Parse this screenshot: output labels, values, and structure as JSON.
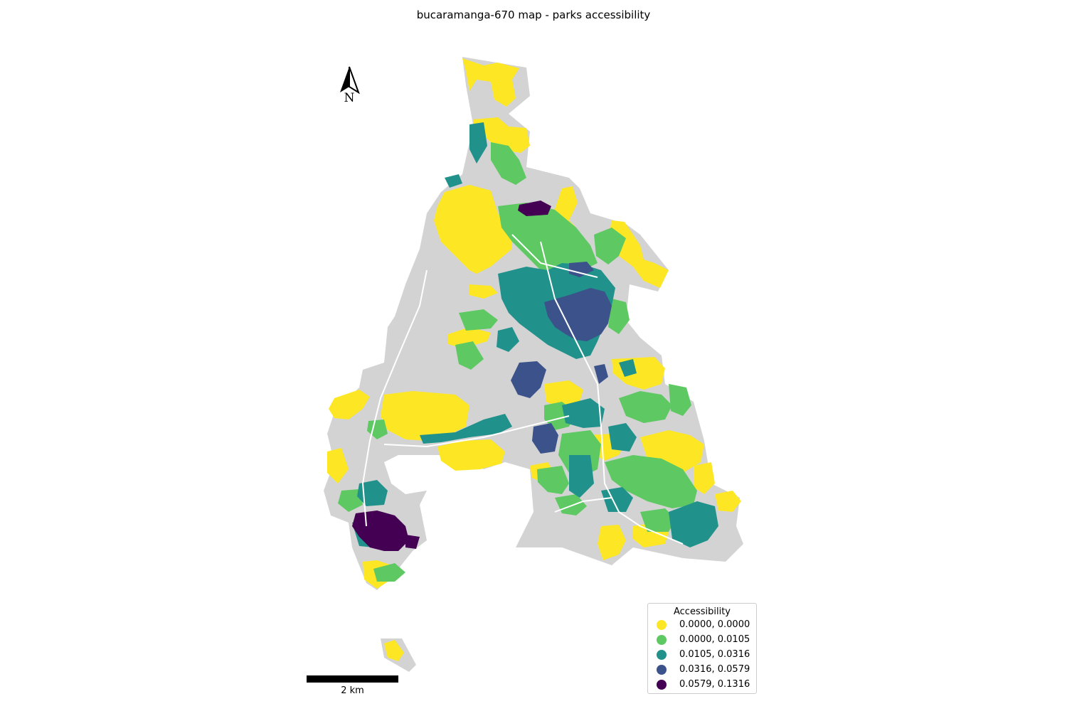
{
  "map": {
    "title": "bucaramanga-670 map - parks accessibility",
    "north_label": "N",
    "scale_label": "2 km",
    "background_color": "#d3d3d3",
    "legend": {
      "title": "Accessibility",
      "items": [
        {
          "label": "0.0000, 0.0000",
          "color": "#fde725"
        },
        {
          "label": "0.0000, 0.0105",
          "color": "#5ec962"
        },
        {
          "label": "0.0105, 0.0316",
          "color": "#21918c"
        },
        {
          "label": "0.0316, 0.0579",
          "color": "#3b528b"
        },
        {
          "label": "0.0579, 0.1316",
          "color": "#440154"
        }
      ]
    }
  }
}
